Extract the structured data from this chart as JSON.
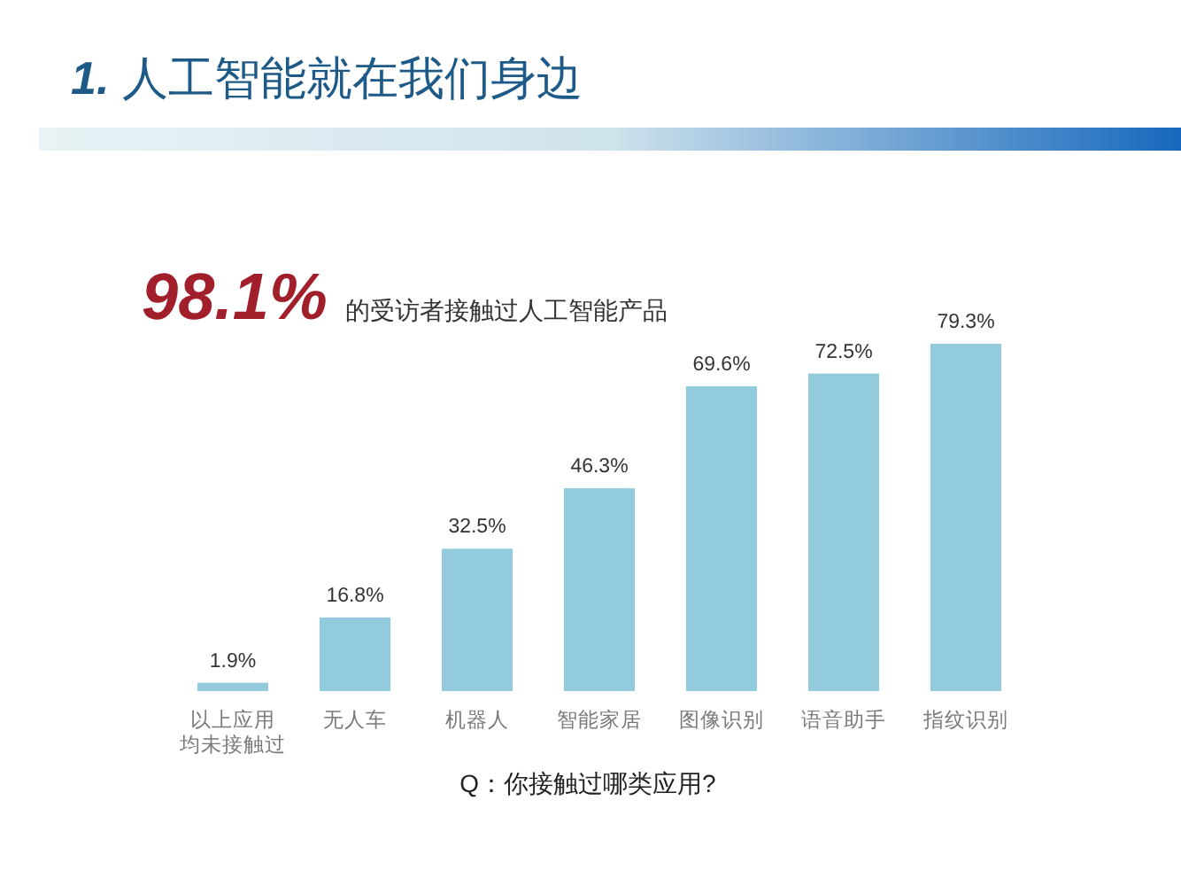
{
  "chart_data": {
    "type": "bar",
    "title": "*1.* 人工智能就在我们身边",
    "subtitle": "*98.1%* 的受访者接触过人工智能产品",
    "xlabel": "Q：你接触过哪类应用?",
    "categories": [
      "以上应用均未接触过",
      "无人车",
      "机器人",
      "智能家居",
      "图像识别",
      "语音助手",
      "指纹识别"
    ],
    "values": [
      1.9,
      16.8,
      32.5,
      46.3,
      69.6,
      72.5,
      79.3
    ],
    "value_labels": [
      "1.9%",
      "16.8%",
      "32.5%",
      "46.3%",
      "69.6%",
      "72.5%",
      "79.3%"
    ],
    "color": "#92cbdc"
  }
}
